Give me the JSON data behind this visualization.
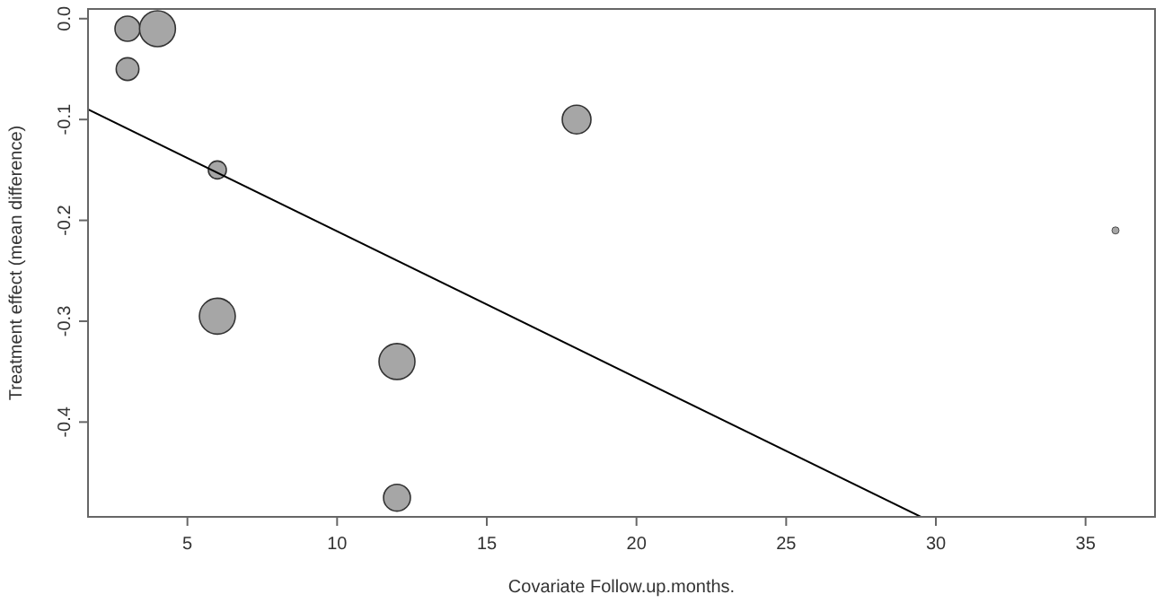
{
  "chart_data": {
    "type": "bubble",
    "xlabel": "Covariate Follow.up.months.",
    "ylabel": "Treatment effect (mean difference)",
    "xlim": [
      1.68,
      37.32
    ],
    "ylim": [
      -0.494,
      0.0096
    ],
    "xticks": [
      5,
      10,
      15,
      20,
      25,
      30,
      35
    ],
    "yticks": [
      {
        "value": 0,
        "label": "0.0"
      },
      -0.1,
      -0.2,
      -0.3,
      -0.4
    ],
    "series": [
      {
        "color": "#a6a6a6",
        "x": [
          3,
          4,
          3,
          6,
          18,
          36,
          6,
          12,
          12
        ],
        "values": [
          -0.01,
          -0.01,
          -0.05,
          -0.15,
          -0.1,
          -0.21,
          -0.295,
          -0.34,
          -0.475
        ],
        "sizes": [
          0.49,
          1,
          0.4,
          0.25,
          0.64,
          0.04,
          1,
          1,
          0.56
        ]
      },
      {
        "type": "line",
        "color": "#000000",
        "x": [
          1.68,
          29.5
        ],
        "values": [
          -0.09,
          -0.494
        ]
      }
    ]
  }
}
